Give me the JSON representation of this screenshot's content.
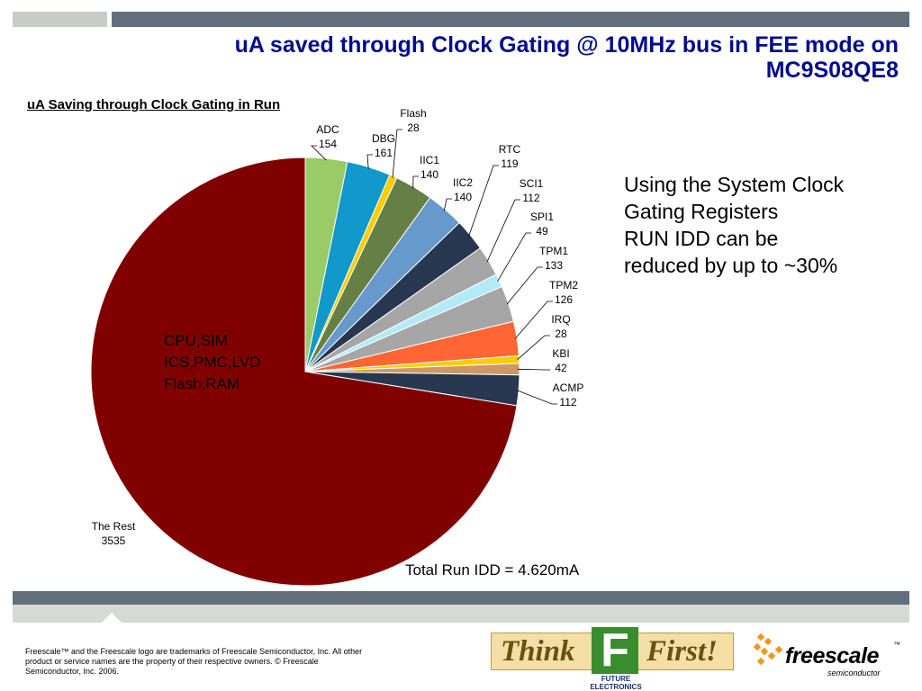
{
  "slide": {
    "title_line1": "uA saved through Clock Gating @ 10MHz bus in FEE mode on",
    "title_line2": "MC9S08QE8",
    "side_text": [
      "Using the System Clock",
      "Gating Registers",
      "RUN IDD can be",
      "reduced by up to ~30%"
    ],
    "inner_label": [
      "CPU,SIM",
      "ICS,PMC,LVD",
      "Flash,RAM"
    ],
    "total": "Total Run IDD = 4.620mA",
    "footer": "Freescale™ and the Freescale logo are trademarks of Freescale Semiconductor, Inc. All other product or service names are the property of their respective owners. © Freescale Semiconductor, Inc. 2006."
  },
  "logos": {
    "think_first_left": "Think",
    "think_first_right": "First!",
    "think_first_f": "F",
    "future_line1": "FUTURE",
    "future_line2": "ELECTRONICS",
    "freescale": "freescale",
    "freescale_tm": "™",
    "freescale_sub": "semiconductor"
  },
  "chart_data": {
    "type": "pie",
    "title": "uA Saving through Clock Gating in Run",
    "start_angle_deg": 90,
    "direction": "clockwise",
    "slices": [
      {
        "label": "ADC",
        "value": 154,
        "color": "#99cc66"
      },
      {
        "label": "DBG",
        "value": 161,
        "color": "#1199cc"
      },
      {
        "label": "Flash",
        "value": 28,
        "color": "#ffcc00"
      },
      {
        "label": "IIC1",
        "value": 140,
        "color": "#667f44"
      },
      {
        "label": "IIC2",
        "value": 140,
        "color": "#6699cc"
      },
      {
        "label": "RTC",
        "value": 119,
        "color": "#27374f"
      },
      {
        "label": "SCI1",
        "value": 112,
        "color": "#a6a6a6"
      },
      {
        "label": "SPI1",
        "value": 49,
        "color": "#b3eaf7"
      },
      {
        "label": "TPM1",
        "value": 133,
        "color": "#a6a6a6"
      },
      {
        "label": "TPM2",
        "value": 126,
        "color": "#ff6633"
      },
      {
        "label": "IRQ",
        "value": 28,
        "color": "#ffcc00"
      },
      {
        "label": "KBI",
        "value": 42,
        "color": "#cc9966"
      },
      {
        "label": "ACMP",
        "value": 112,
        "color": "#27374f"
      },
      {
        "label": "The Rest",
        "value": 3535,
        "color": "#800000"
      }
    ]
  }
}
